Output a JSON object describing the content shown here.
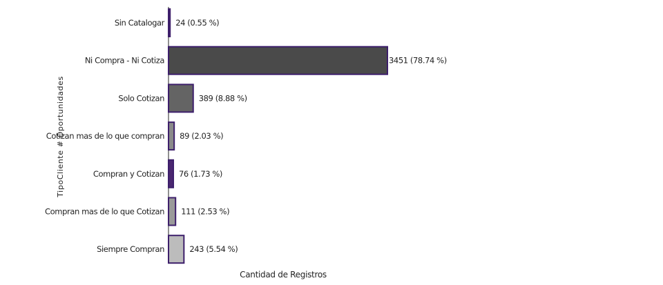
{
  "chart_data": {
    "type": "bar",
    "orientation": "horizontal",
    "title": "",
    "xlabel": "Cantidad de Registros",
    "ylabel": "TipoCliente # Oportunidades",
    "categories": [
      "Sin Catalogar",
      "Ni Compra - Ni Cotiza",
      "Solo Cotizan",
      "Cotizan mas de lo que compran",
      "Compran y Cotizan",
      "Compran mas de lo que Cotizan",
      "Siempre Compran"
    ],
    "values": [
      24,
      3451,
      389,
      89,
      76,
      111,
      243
    ],
    "data_labels": [
      "24 (0.55 %)",
      "3451 (78.74 %)",
      "389 (8.88 %)",
      "89 (2.03 %)",
      "76 (1.73 %)",
      "111 (2.53 %)",
      "243 (5.54 %)"
    ],
    "bar_colors": [
      "#4a2770",
      "#4a4a4a",
      "#646464",
      "#8a8a8a",
      "#4a2770",
      "#9a9a9a",
      "#bcbcbc"
    ],
    "edge_color": "#3d1f6b",
    "xlim": [
      0,
      3451
    ],
    "grid": false,
    "legend": "none"
  }
}
